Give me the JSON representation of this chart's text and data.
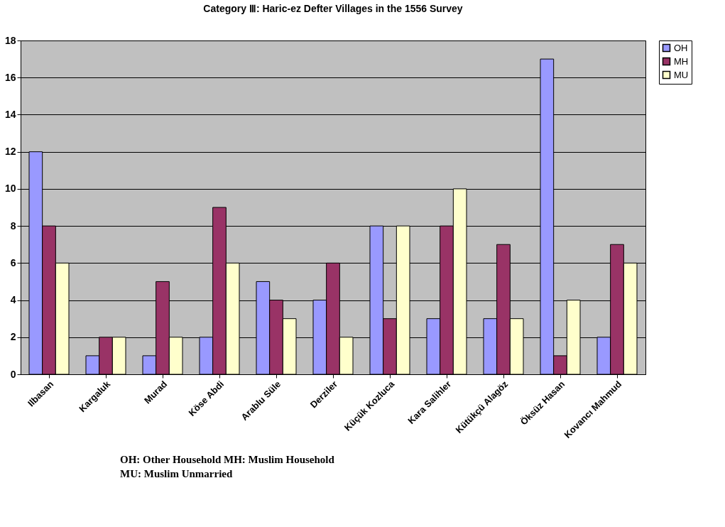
{
  "chart_data": {
    "type": "bar",
    "title": "Category Ⅲ: Haric-ez Defter Villages in the 1556 Survey",
    "categories": [
      "Ilbasan",
      "Kargaluk",
      "Murad",
      "Köse Abdi",
      "Arablu Süle",
      "Derziler",
      "Küçük Kozluca",
      "Kara Salihler",
      "Kütükçü Alagöz",
      "Öksüz Hasan",
      "Kovancı Mahmud"
    ],
    "series": [
      {
        "name": "OH",
        "color": "#9999ff",
        "values": [
          12,
          1,
          1,
          2,
          5,
          4,
          8,
          3,
          3,
          17,
          2
        ]
      },
      {
        "name": "MH",
        "color": "#993366",
        "values": [
          8,
          2,
          5,
          9,
          4,
          6,
          3,
          8,
          7,
          1,
          7
        ]
      },
      {
        "name": "MU",
        "color": "#ffffcc",
        "values": [
          6,
          2,
          2,
          6,
          3,
          2,
          8,
          10,
          3,
          4,
          6
        ]
      }
    ],
    "ylim": [
      0,
      18
    ],
    "yticks": [
      0,
      2,
      4,
      6,
      8,
      10,
      12,
      14,
      16,
      18
    ],
    "grid": "y",
    "legend": "right",
    "annotations": [
      "OH:  Other  Household    MH:  Muslim  Household",
      "MU: Muslim Unmarried"
    ]
  }
}
